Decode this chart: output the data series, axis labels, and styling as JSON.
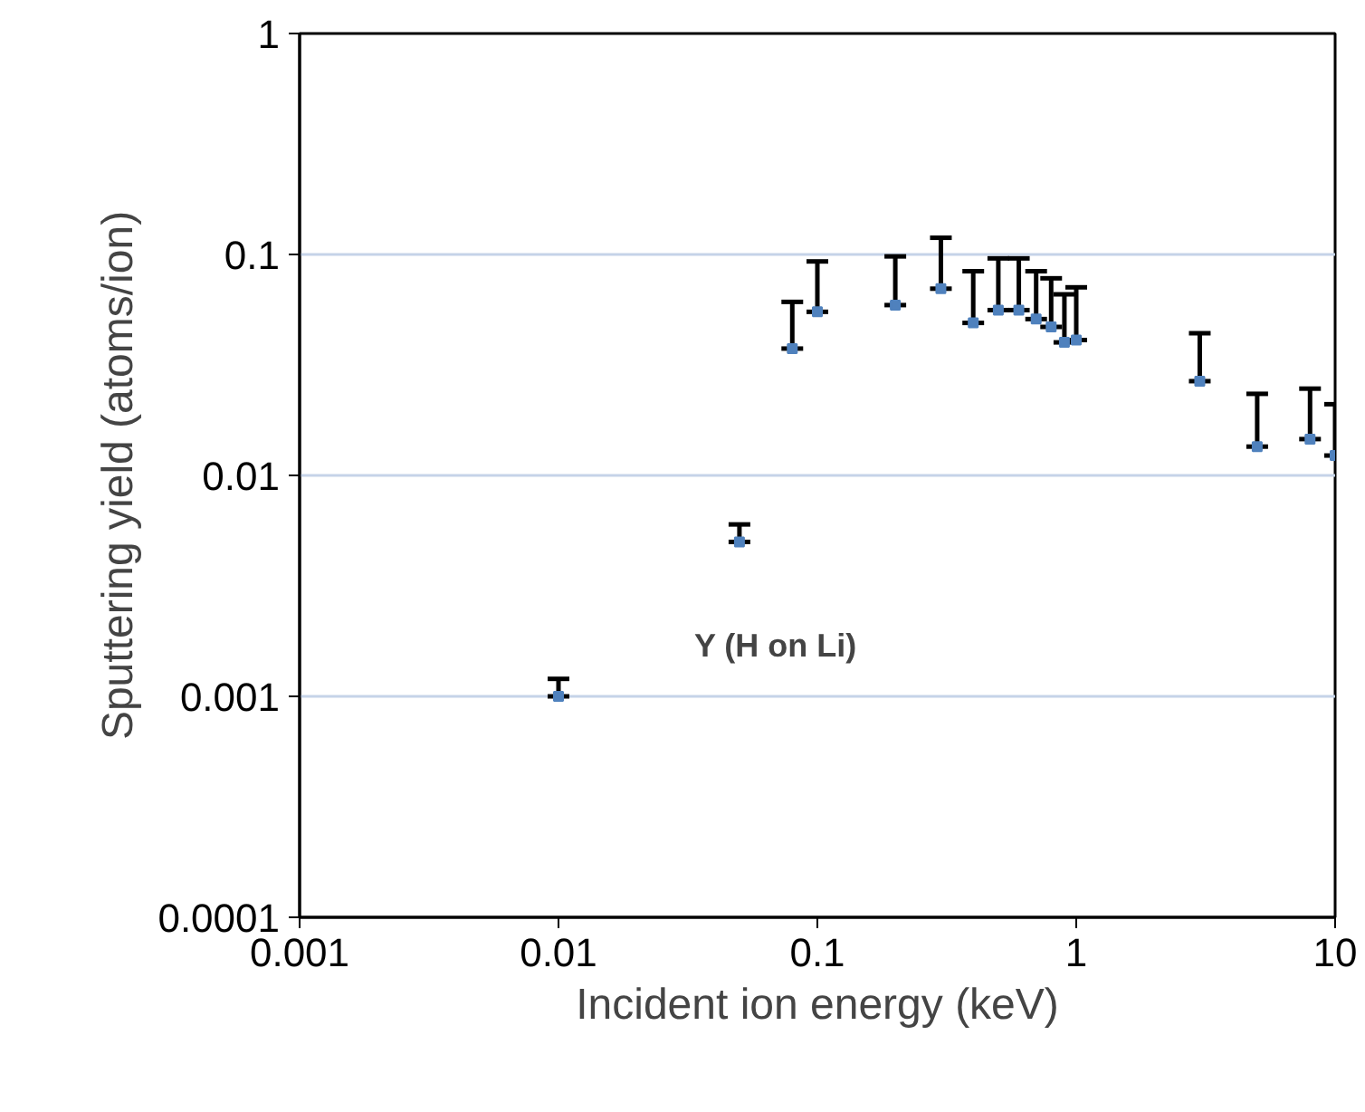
{
  "chart_data": {
    "type": "scatter",
    "xlabel": "Incident ion energy (keV)",
    "ylabel": "Sputtering yield (atoms/ion)",
    "annotations": [
      "Y (H on Li)"
    ],
    "log": "xy",
    "x": [
      0.01,
      0.05,
      0.08,
      0.1,
      0.2,
      0.3,
      0.4,
      0.5,
      0.6,
      0.7,
      0.8,
      0.9,
      1,
      3,
      5,
      8,
      10
    ],
    "series": [
      {
        "color": "#4f81bd",
        "values": [
          0.001,
          0.005,
          0.0375,
          0.055,
          0.059,
          0.07,
          0.049,
          0.056,
          0.056,
          0.051,
          0.047,
          0.04,
          0.041,
          0.0267,
          0.0135,
          0.0146,
          0.0123
        ],
        "errors": [
          [
            0.001,
            0.0012
          ],
          [
            0.005,
            0.006
          ],
          [
            0.0375,
            0.061
          ],
          [
            0.055,
            0.093
          ],
          [
            0.059,
            0.098
          ],
          [
            0.07,
            0.119
          ],
          [
            0.049,
            0.084
          ],
          [
            0.056,
            0.096
          ],
          [
            0.056,
            0.096
          ],
          [
            0.051,
            0.084
          ],
          [
            0.047,
            0.078
          ],
          [
            0.04,
            0.066
          ],
          [
            0.041,
            0.071
          ],
          [
            0.0267,
            0.044
          ],
          [
            0.0135,
            0.0234
          ],
          [
            0.0146,
            0.0247
          ],
          [
            0.0123,
            0.021
          ]
        ]
      }
    ],
    "xlim": [
      0.001,
      10
    ],
    "ylim": [
      0.0001,
      1
    ],
    "xticks": [
      0.001,
      0.01,
      0.1,
      1,
      10
    ],
    "yticks": [
      0.0001,
      0.001,
      0.01,
      0.1,
      1
    ],
    "grid": "y",
    "marker": "square"
  }
}
